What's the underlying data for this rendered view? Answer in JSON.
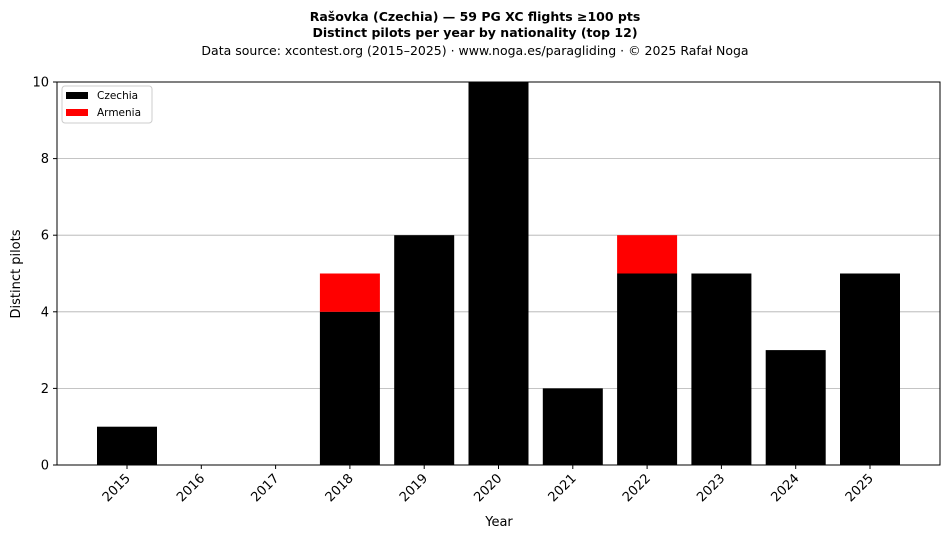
{
  "chart_data": {
    "type": "bar",
    "stacked": true,
    "title": "Rašovka (Czechia)  —  59 PG XC flights ≥100 pts",
    "subtitle": "Distinct pilots per year by nationality (top 12)",
    "source": "Data source: xcontest.org (2015–2025)  ·  www.noga.es/paragliding  ·  © 2025 Rafał Noga",
    "xlabel": "Year",
    "ylabel": "Distinct pilots",
    "categories": [
      "2015",
      "2016",
      "2017",
      "2018",
      "2019",
      "2020",
      "2021",
      "2022",
      "2023",
      "2024",
      "2025"
    ],
    "series": [
      {
        "name": "Czechia",
        "color": "#000000",
        "values": [
          1,
          0,
          0,
          4,
          6,
          10,
          2,
          5,
          5,
          3,
          5
        ]
      },
      {
        "name": "Armenia",
        "color": "#ff0000",
        "values": [
          0,
          0,
          0,
          1,
          0,
          0,
          0,
          1,
          0,
          0,
          0
        ]
      }
    ],
    "ylim": [
      0,
      10
    ],
    "yticks": [
      "0",
      "2",
      "4",
      "6",
      "8",
      "10"
    ],
    "grid": "y",
    "legend_position": "top-left"
  }
}
